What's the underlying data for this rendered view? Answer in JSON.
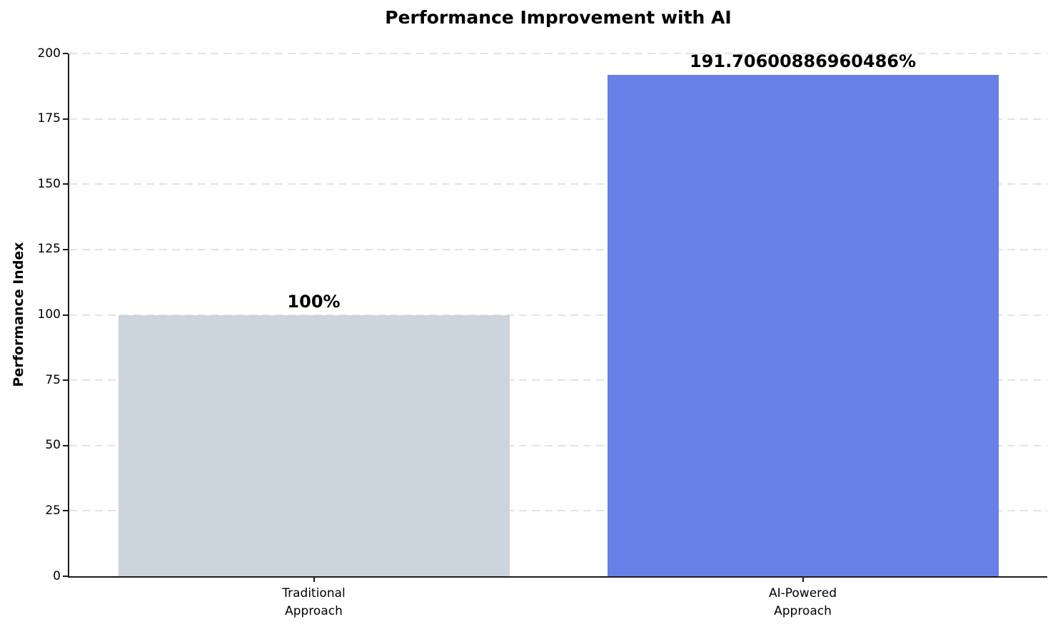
{
  "title": "Performance Improvement with AI",
  "y_axis": {
    "label": "Performance Index",
    "tick_labels": [
      "0",
      "25",
      "50",
      "75",
      "100",
      "125",
      "150",
      "175",
      "200"
    ]
  },
  "chart_data": {
    "type": "bar",
    "title": "Performance Improvement with AI",
    "xlabel": "",
    "ylabel": "Performance Index",
    "categories": [
      "Traditional\nApproach",
      "AI-Powered\nApproach"
    ],
    "values": [
      100,
      191.70600886960486
    ],
    "bar_labels": [
      "100%",
      "191.70600886960486%"
    ],
    "bar_colors": [
      "#ccd4dd",
      "#6680e8"
    ],
    "ylim": [
      0,
      200
    ],
    "yticks": [
      0,
      25,
      50,
      75,
      100,
      125,
      150,
      175,
      200
    ],
    "grid": {
      "axis": "y",
      "style": "dashed",
      "color": "#e3e3e3"
    },
    "legend": "none",
    "background": "#ffffff",
    "axis_color": "#1c1c1c"
  }
}
